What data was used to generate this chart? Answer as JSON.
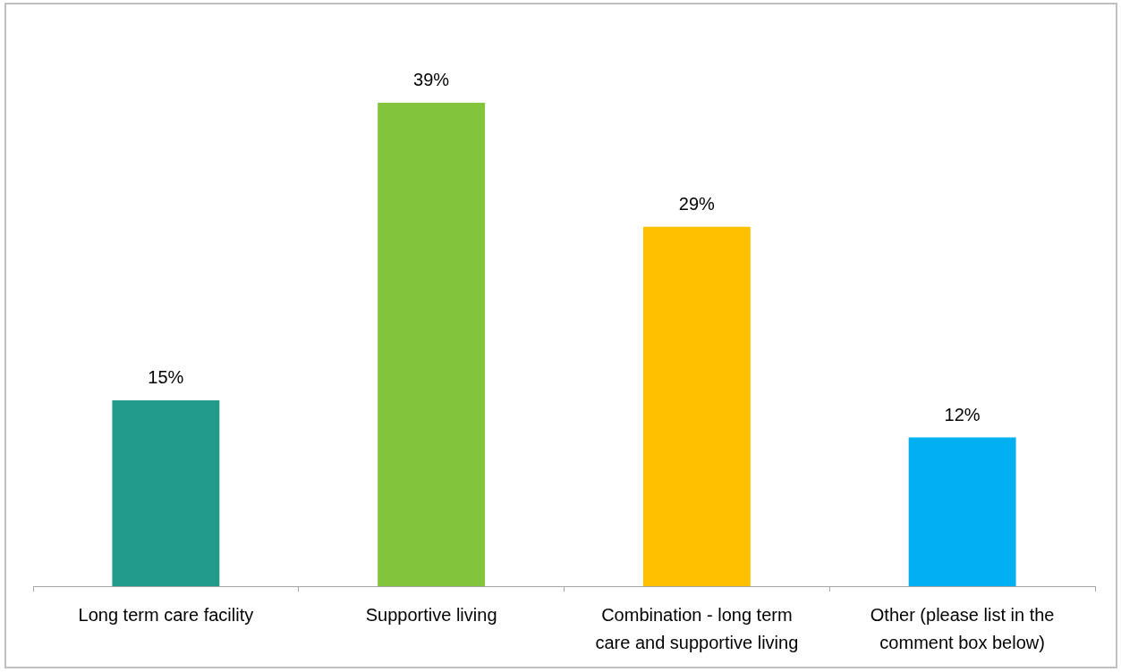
{
  "chart_data": {
    "type": "bar",
    "categories": [
      "Long term care facility",
      "Supportive living",
      "Combination - long term care and supportive living",
      "Other (please list in the comment box below)"
    ],
    "values": [
      15,
      39,
      29,
      12
    ],
    "colors": [
      "#239b8b",
      "#82c43c",
      "#ffc000",
      "#00b0f0"
    ],
    "value_labels": [
      "15%",
      "39%",
      "29%",
      "12%"
    ]
  }
}
